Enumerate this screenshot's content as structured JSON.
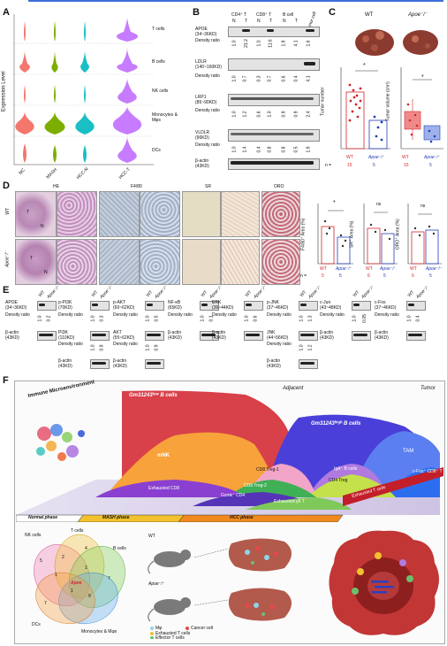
{
  "topline_color": "#3d6fd8",
  "panels": {
    "A": {
      "label": "A",
      "ylabel": "Expression Level",
      "xlabels": [
        "NC",
        "MASH",
        "HCC-N",
        "HCC-T"
      ],
      "rows": [
        "T cells",
        "B cells",
        "NK cells",
        "Monocytes & Mφs",
        "DCs"
      ],
      "colors": [
        "#f4766d",
        "#7cae00",
        "#19bfc4",
        "#c77cff"
      ]
    },
    "B": {
      "label": "B",
      "col_groups": [
        "CD4⁺ T",
        "CD8⁺ T",
        "B cell",
        "Tumor cell"
      ],
      "col_sub": [
        "N",
        "T",
        "N",
        "T",
        "N",
        "T"
      ],
      "proteins": [
        {
          "name": "APOE",
          "kd": "(34~36KD)",
          "ratio_label": "Density ratio",
          "ratios": [
            "1.0",
            "21.2",
            "1.0",
            "11.6",
            "1.9",
            "4.1",
            "1.6"
          ]
        },
        {
          "name": "LDLR",
          "kd": "(140~160KD)",
          "ratio_label": "Density ratio",
          "ratios": [
            "1.0",
            "0.7",
            "0.3",
            "0.7",
            "0.6",
            "0.4",
            "4.1"
          ]
        },
        {
          "name": "LRP1",
          "kd": "(85~90KD)",
          "ratio_label": "Density ratio",
          "ratios": [
            "1.0",
            "1.2",
            "0.6",
            "1.0",
            "0.9",
            "0.9",
            "2.4"
          ]
        },
        {
          "name": "VLDLR",
          "kd": "(96KD)",
          "ratio_label": "Density ratio",
          "ratios": [
            "1.0",
            "1.4",
            "0.4",
            "0.8",
            "0.8",
            "0.5",
            "1.9"
          ]
        }
      ],
      "actin": "β-actin",
      "actin_kd": "(43KD)"
    },
    "C": {
      "label": "C",
      "wt": "WT",
      "ko": "Apoe⁻/⁻",
      "chart1_ylabel": "Tumor number",
      "chart2_ylabel": "Tumor volume (cm³)",
      "n_label": "n =",
      "n_wt": "15",
      "n_ko": "5",
      "star": "*"
    },
    "D": {
      "label": "D",
      "headers": [
        "HE",
        "F4/80",
        "SR",
        "ORO"
      ],
      "row_labels": [
        "WT",
        "Apoe⁻/⁻"
      ],
      "letters": [
        "T",
        "N"
      ],
      "charts": [
        {
          "ylabel": "F4/80⁺ Area (%)",
          "sig": "*",
          "n_wt": "5",
          "n_ko": "5"
        },
        {
          "ylabel": "SR⁺ Area (%)",
          "sig": "ns",
          "n_wt": "6",
          "n_ko": "5"
        },
        {
          "ylabel": "ORO⁺ Area (%)",
          "sig": "ns",
          "n_wt": "6",
          "n_ko": "5"
        }
      ],
      "n_label": "n ="
    },
    "E": {
      "label": "E",
      "wt": "WT",
      "ko": "Apoe⁻/⁻",
      "groups": [
        {
          "top": "APOE",
          "top_kd": "(34~36KD)",
          "ratios": [
            "1.0",
            "0.2"
          ]
        },
        {
          "top": "p-PI3K",
          "top_kd": "(70KD)",
          "ratios": [
            "1.0",
            "0.3"
          ],
          "bottom": "PI3K",
          "bottom_kd": "(110KD)",
          "ratios2": [
            "1.0",
            "0.9"
          ]
        },
        {
          "top": "p-AKT",
          "top_kd": "(60~62KD)",
          "ratios": [
            "1.0",
            "0.5"
          ],
          "bottom": "AKT",
          "bottom_kd": "(55~62KD)",
          "ratios2": [
            "1.0",
            "0.9"
          ]
        },
        {
          "top": "NF-κB",
          "top_kd": "(65KD)",
          "ratios": [
            "1.0",
            "0.1"
          ]
        },
        {
          "top": "ERK",
          "top_kd": "(36~44KD)",
          "ratios": [
            "1.0",
            "0.6"
          ]
        },
        {
          "top": "p-JNK",
          "top_kd": "(37~46KD)",
          "ratios": [
            "1.0",
            "1.3"
          ],
          "bottom": "JNK",
          "bottom_kd": "(44~56KD)",
          "ratios2": [
            "1.0",
            "1.2"
          ]
        },
        {
          "top": "c-Jun",
          "top_kd": "(43~48KD)",
          "ratios": [
            "1.0",
            "0.05"
          ]
        },
        {
          "top": "c-Fos",
          "top_kd": "(37~46KD)",
          "ratios": [
            "1.0",
            "0.4"
          ]
        }
      ],
      "density": "Density ratio",
      "actin": "β-actin",
      "actin_kd": "(43KD)"
    },
    "F": {
      "label": "F",
      "immune": "Immune Microenvironment",
      "adjacent": "Adjacent",
      "tumor": "Tumor",
      "streams": [
        "Gm31243ˡᵒʷ B cells",
        "Gm31243ʰⁱᵍʰ B cells",
        "mNK",
        "TAM",
        "c-Fos⁺ CD8⁺ T",
        "IgA⁺ B cells",
        "CD8 Treg-1",
        "CD4 Treg",
        "CD8 Treg-2",
        "Exhausted CD8",
        "Gzmk⁺ CD4",
        "Exhausted γδ T",
        "Exhausted T cells",
        "Macrophages",
        "Treg cells"
      ],
      "phases": [
        "Normal phase",
        "MASH phase",
        "HCC phase"
      ],
      "venn": {
        "sets": [
          "NK cells",
          "T cells",
          "B cells",
          "Monocytes & Mφs",
          "DCs"
        ],
        "numbers": [
          "5",
          "2",
          "4",
          "1",
          "7",
          "1",
          "9",
          "7",
          "1"
        ],
        "center": "Apoe"
      },
      "mouse_wt": "WT",
      "mouse_ko": "Apoe⁻/⁻",
      "legend": [
        "Mφ",
        "Cancer cell",
        "Exhausted T cells",
        "Effector T cells"
      ]
    }
  }
}
